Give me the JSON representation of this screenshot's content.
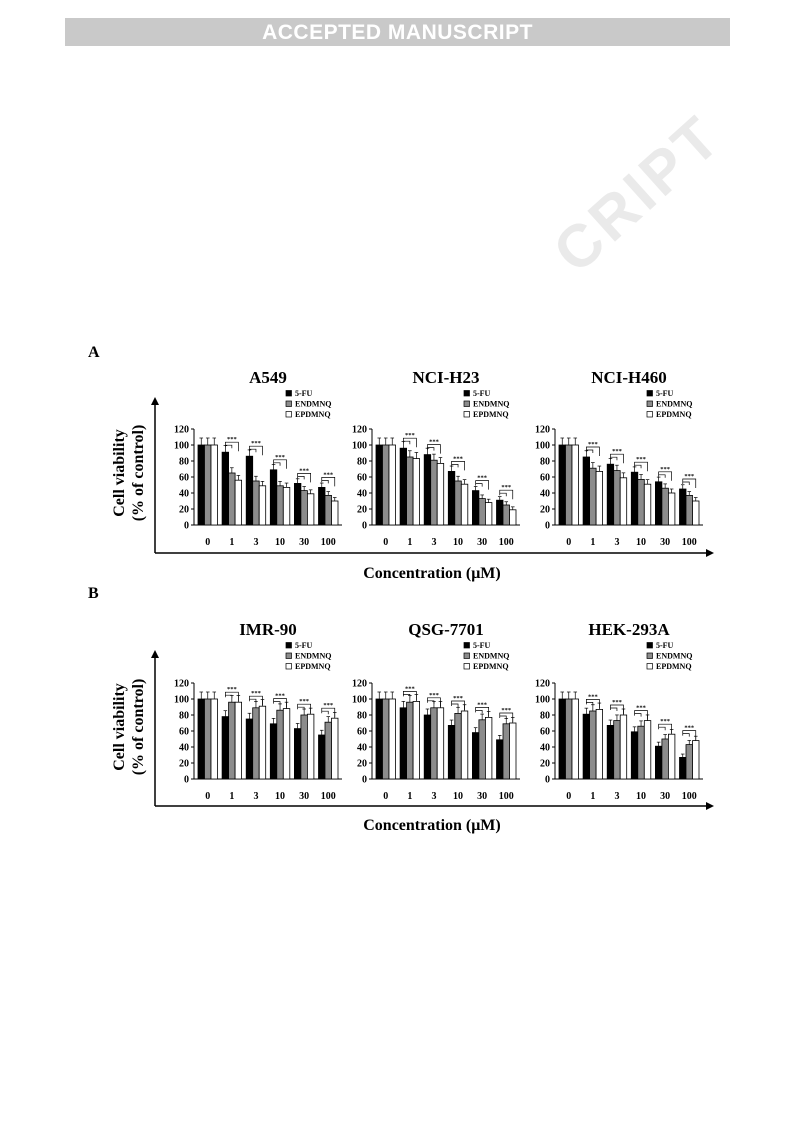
{
  "banner": "ACCEPTED MANUSCRIPT",
  "watermark": "CRIPT",
  "panels": [
    {
      "label": "A",
      "xlabel": "Concentration (μM)",
      "ylabel_line1": "Cell viability",
      "ylabel_line2": "(% of control)"
    },
    {
      "label": "B",
      "xlabel": "Concentration (μM)",
      "ylabel_line1": "Cell viability",
      "ylabel_line2": "(% of control)"
    }
  ],
  "colors": {
    "5-FU": "#000000",
    "ENDMNQ": "#8c8c8c",
    "EPDMNQ": "#ffffff"
  },
  "chart_data": [
    {
      "type": "bar",
      "title": "A549",
      "categories": [
        "0",
        "1",
        "3",
        "10",
        "30",
        "100"
      ],
      "ylim": [
        0,
        120
      ],
      "yticks": [
        0,
        20,
        40,
        60,
        80,
        100,
        120
      ],
      "significance": "***",
      "legend": [
        "5-FU",
        "ENDMNQ",
        "EPDMNQ"
      ],
      "series": [
        {
          "name": "5-FU",
          "values": [
            100,
            91,
            86,
            69,
            52,
            47
          ]
        },
        {
          "name": "ENDMNQ",
          "values": [
            100,
            65,
            55,
            49,
            43,
            37
          ]
        },
        {
          "name": "EPDMNQ",
          "values": [
            100,
            56,
            49,
            47,
            39,
            30
          ]
        }
      ]
    },
    {
      "type": "bar",
      "title": "NCI-H23",
      "categories": [
        "0",
        "1",
        "3",
        "10",
        "30",
        "100"
      ],
      "ylim": [
        0,
        120
      ],
      "yticks": [
        0,
        20,
        40,
        60,
        80,
        100,
        120
      ],
      "significance": "***",
      "legend": [
        "5-FU",
        "ENDMNQ",
        "EPDMNQ"
      ],
      "series": [
        {
          "name": "5-FU",
          "values": [
            100,
            96,
            88,
            67,
            43,
            31
          ]
        },
        {
          "name": "ENDMNQ",
          "values": [
            100,
            85,
            81,
            55,
            33,
            25
          ]
        },
        {
          "name": "EPDMNQ",
          "values": [
            100,
            83,
            77,
            51,
            28,
            19
          ]
        }
      ]
    },
    {
      "type": "bar",
      "title": "NCI-H460",
      "categories": [
        "0",
        "1",
        "3",
        "10",
        "30",
        "100"
      ],
      "ylim": [
        0,
        120
      ],
      "yticks": [
        0,
        20,
        40,
        60,
        80,
        100,
        120
      ],
      "significance": "***",
      "legend": [
        "5-FU",
        "ENDMNQ",
        "EPDMNQ"
      ],
      "series": [
        {
          "name": "5-FU",
          "values": [
            100,
            85,
            76,
            66,
            54,
            45
          ]
        },
        {
          "name": "ENDMNQ",
          "values": [
            100,
            71,
            68,
            57,
            46,
            37
          ]
        },
        {
          "name": "EPDMNQ",
          "values": [
            100,
            67,
            59,
            51,
            40,
            30
          ]
        }
      ]
    },
    {
      "type": "bar",
      "title": "IMR-90",
      "categories": [
        "0",
        "1",
        "3",
        "10",
        "30",
        "100"
      ],
      "ylim": [
        0,
        120
      ],
      "yticks": [
        0,
        20,
        40,
        60,
        80,
        100,
        120
      ],
      "significance": "***",
      "legend": [
        "5-FU",
        "ENDMNQ",
        "EPDMNQ"
      ],
      "series": [
        {
          "name": "5-FU",
          "values": [
            100,
            78,
            75,
            69,
            63,
            55
          ]
        },
        {
          "name": "ENDMNQ",
          "values": [
            100,
            96,
            89,
            86,
            80,
            71
          ]
        },
        {
          "name": "EPDMNQ",
          "values": [
            100,
            96,
            91,
            88,
            81,
            76
          ]
        }
      ]
    },
    {
      "type": "bar",
      "title": "QSG-7701",
      "categories": [
        "0",
        "1",
        "3",
        "10",
        "30",
        "100"
      ],
      "ylim": [
        0,
        120
      ],
      "yticks": [
        0,
        20,
        40,
        60,
        80,
        100,
        120
      ],
      "significance": "***",
      "legend": [
        "5-FU",
        "ENDMNQ",
        "EPDMNQ"
      ],
      "series": [
        {
          "name": "5-FU",
          "values": [
            100,
            89,
            80,
            67,
            58,
            49
          ]
        },
        {
          "name": "ENDMNQ",
          "values": [
            100,
            96,
            89,
            82,
            74,
            69
          ]
        },
        {
          "name": "EPDMNQ",
          "values": [
            100,
            97,
            89,
            85,
            77,
            70
          ]
        }
      ]
    },
    {
      "type": "bar",
      "title": "HEK-293A",
      "categories": [
        "0",
        "1",
        "3",
        "10",
        "30",
        "100"
      ],
      "ylim": [
        0,
        120
      ],
      "yticks": [
        0,
        20,
        40,
        60,
        80,
        100,
        120
      ],
      "significance": "***",
      "legend": [
        "5-FU",
        "ENDMNQ",
        "EPDMNQ"
      ],
      "series": [
        {
          "name": "5-FU",
          "values": [
            100,
            81,
            67,
            59,
            41,
            27
          ]
        },
        {
          "name": "ENDMNQ",
          "values": [
            100,
            85,
            73,
            66,
            50,
            43
          ]
        },
        {
          "name": "EPDMNQ",
          "values": [
            100,
            87,
            80,
            73,
            56,
            48
          ]
        }
      ]
    }
  ]
}
